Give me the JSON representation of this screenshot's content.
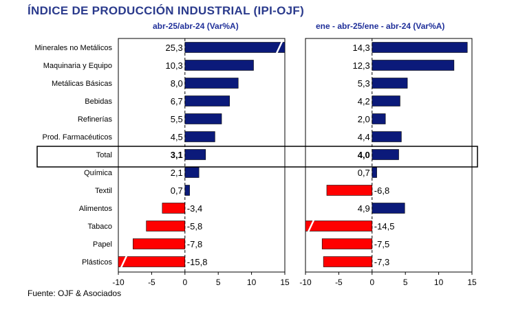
{
  "title": "ÍNDICE DE PRODUCCIÓN INDUSTRIAL (IPI-OJF)",
  "source": "Fuente: OJF & Asociados",
  "colors": {
    "title": "#2a3a8c",
    "positive_bar": "#0b1a7a",
    "negative_bar": "#ff0000",
    "panel_title": "#1f2f99"
  },
  "chart_data": [
    {
      "type": "bar",
      "orientation": "horizontal",
      "title": "abr-25/abr-24 (Var%A)",
      "categories": [
        "Minerales no Metálicos",
        "Maquinaria y Equipo",
        "Metálicas Básicas",
        "Bebidas",
        "Refinerías",
        "Prod. Farmacéuticos",
        "Total",
        "Química",
        "Textil",
        "Alimentos",
        "Tabaco",
        "Papel",
        "Plásticos"
      ],
      "values": [
        25.3,
        10.3,
        8.0,
        6.7,
        5.5,
        4.5,
        3.1,
        2.1,
        0.7,
        -3.4,
        -5.8,
        -7.8,
        -15.8
      ],
      "value_labels": [
        "25,3",
        "10,3",
        "8,0",
        "6,7",
        "5,5",
        "4,5",
        "3,1",
        "2,1",
        "0,7",
        "-3,4",
        "-5,8",
        "-7,8",
        "-15,8"
      ],
      "xlim": [
        -10,
        15
      ],
      "xticks": [
        -10,
        -5,
        0,
        5,
        10,
        15
      ],
      "xtick_labels": [
        "-10",
        "-5",
        "0",
        "5",
        "10",
        "15"
      ],
      "truncated_bars": [
        "Minerales no Metálicos",
        "Plásticos"
      ],
      "highlighted_category": "Total",
      "grid": false,
      "legend": "none"
    },
    {
      "type": "bar",
      "orientation": "horizontal",
      "title": "ene - abr-25/ene - abr-24 (Var%A)",
      "categories": [
        "Minerales no Metálicos",
        "Maquinaria y Equipo",
        "Metálicas Básicas",
        "Bebidas",
        "Refinerías",
        "Prod. Farmacéuticos",
        "Total",
        "Química",
        "Textil",
        "Alimentos",
        "Tabaco",
        "Papel",
        "Plásticos"
      ],
      "values": [
        14.3,
        12.3,
        5.3,
        4.2,
        2.0,
        4.4,
        4.0,
        0.7,
        -6.8,
        4.9,
        -14.5,
        -7.5,
        -7.3
      ],
      "value_labels": [
        "14,3",
        "12,3",
        "5,3",
        "4,2",
        "2,0",
        "4,4",
        "4,0",
        "0,7",
        "-6,8",
        "4,9",
        "-14,5",
        "-7,5",
        "-7,3"
      ],
      "xlim": [
        -10,
        15
      ],
      "xticks": [
        -10,
        -5,
        0,
        5,
        10,
        15
      ],
      "xtick_labels": [
        "-10",
        "-5",
        "0",
        "5",
        "10",
        "15"
      ],
      "truncated_bars": [
        "Tabaco"
      ],
      "highlighted_category": "Total",
      "grid": false,
      "legend": "none"
    }
  ]
}
